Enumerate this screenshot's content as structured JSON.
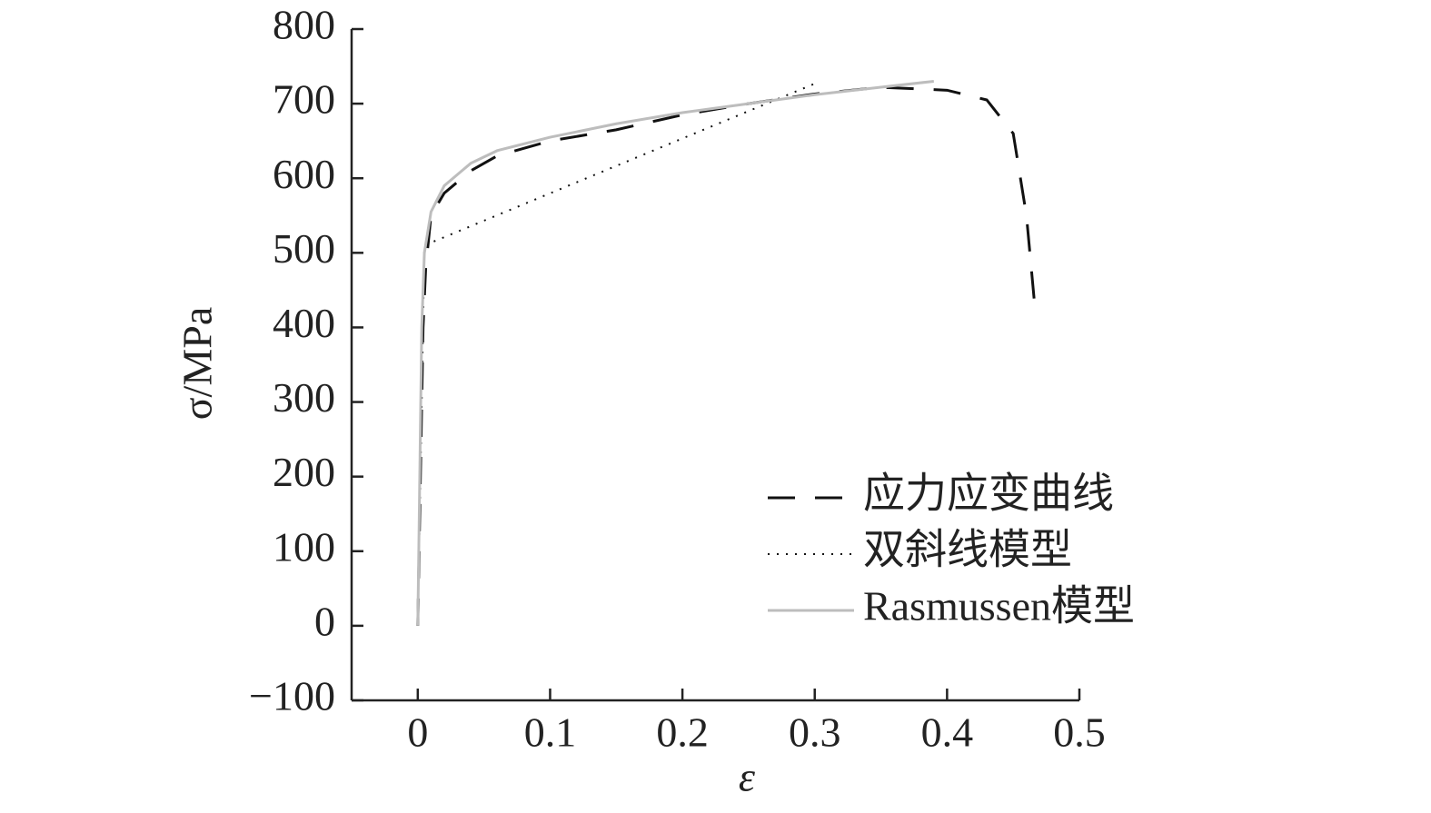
{
  "chart_data": {
    "type": "line",
    "x_label": "ε",
    "y_label": "σ/MPa",
    "xlim": [
      -0.05,
      0.5
    ],
    "xticks": [
      0,
      0.1,
      0.2,
      0.3,
      0.4,
      0.5
    ],
    "ylim": [
      -100,
      800
    ],
    "yticks": [
      {
        "value": -100,
        "label": "−100"
      },
      0,
      100,
      200,
      300,
      400,
      500,
      600,
      700,
      800
    ],
    "grid": false,
    "legend": "lower right",
    "series": [
      {
        "name": "应力应变曲线",
        "color": "#111111",
        "linestyle": "dashed",
        "x": [
          0,
          0.002,
          0.004,
          0.006,
          0.01,
          0.02,
          0.04,
          0.06,
          0.1,
          0.15,
          0.2,
          0.25,
          0.3,
          0.35,
          0.4,
          0.43,
          0.45,
          0.46,
          0.467
        ],
        "values": [
          0,
          200,
          400,
          480,
          550,
          580,
          610,
          630,
          650,
          665,
          685,
          700,
          713,
          722,
          718,
          705,
          660,
          550,
          415
        ]
      },
      {
        "name": "双斜线模型",
        "color": "#111111",
        "linestyle": "dotted",
        "x": [
          0,
          0.005,
          0.303
        ],
        "values": [
          0,
          510,
          729
        ]
      },
      {
        "name": "Rasmussen模型",
        "color": "#bdbdbd",
        "linestyle": "solid",
        "x": [
          0,
          0.003,
          0.005,
          0.01,
          0.02,
          0.04,
          0.06,
          0.1,
          0.15,
          0.2,
          0.25,
          0.3,
          0.35,
          0.39
        ],
        "values": [
          0,
          400,
          500,
          555,
          590,
          620,
          637,
          655,
          673,
          688,
          700,
          712,
          722,
          730
        ]
      }
    ]
  }
}
